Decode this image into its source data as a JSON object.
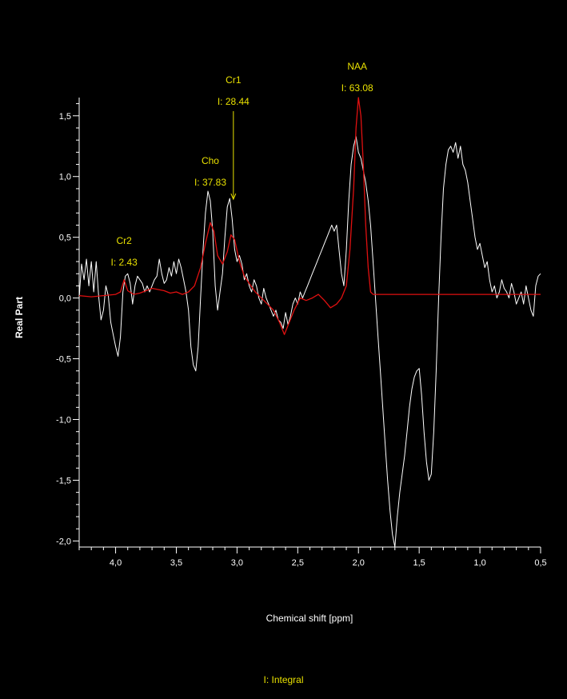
{
  "chart_data": {
    "type": "line",
    "xlabel": "Chemical shift [ppm]",
    "ylabel": "Real Part",
    "xlim": [
      4.3,
      0.5
    ],
    "ylim": [
      -2.05,
      1.65
    ],
    "x_reversed": true,
    "x_ticks": [
      {
        "value": 4.0,
        "label": "4,0"
      },
      {
        "value": 3.5,
        "label": "3,5"
      },
      {
        "value": 3.0,
        "label": "3,0"
      },
      {
        "value": 2.5,
        "label": "2,5"
      },
      {
        "value": 2.0,
        "label": "2,0"
      },
      {
        "value": 1.5,
        "label": "1,5"
      },
      {
        "value": 1.0,
        "label": "1,0"
      },
      {
        "value": 0.5,
        "label": "0,5"
      }
    ],
    "y_ticks": [
      {
        "value": 1.5,
        "label": "1,5"
      },
      {
        "value": 1.0,
        "label": "1,0"
      },
      {
        "value": 0.5,
        "label": "0,5"
      },
      {
        "value": 0.0,
        "label": "0,0"
      },
      {
        "value": -0.5,
        "label": "-0,5"
      },
      {
        "value": -1.0,
        "label": "-1,0"
      },
      {
        "value": -1.5,
        "label": "-1,5"
      },
      {
        "value": -2.0,
        "label": "-2,0"
      }
    ],
    "grid": false,
    "series": [
      {
        "color": "#ffffff",
        "points": [
          [
            4.3,
            0.0
          ],
          [
            4.28,
            0.28
          ],
          [
            4.26,
            0.15
          ],
          [
            4.24,
            0.32
          ],
          [
            4.22,
            0.1
          ],
          [
            4.2,
            0.3
          ],
          [
            4.18,
            0.05
          ],
          [
            4.16,
            0.3
          ],
          [
            4.14,
            0.02
          ],
          [
            4.12,
            -0.18
          ],
          [
            4.1,
            -0.1
          ],
          [
            4.08,
            0.1
          ],
          [
            4.06,
            0.02
          ],
          [
            4.04,
            -0.2
          ],
          [
            4.02,
            -0.3
          ],
          [
            4.0,
            -0.4
          ],
          [
            3.98,
            -0.48
          ],
          [
            3.96,
            -0.32
          ],
          [
            3.94,
            0.05
          ],
          [
            3.92,
            0.18
          ],
          [
            3.9,
            0.2
          ],
          [
            3.88,
            0.12
          ],
          [
            3.86,
            -0.05
          ],
          [
            3.84,
            0.1
          ],
          [
            3.82,
            0.18
          ],
          [
            3.8,
            0.15
          ],
          [
            3.78,
            0.12
          ],
          [
            3.76,
            0.05
          ],
          [
            3.74,
            0.1
          ],
          [
            3.72,
            0.05
          ],
          [
            3.7,
            0.1
          ],
          [
            3.68,
            0.15
          ],
          [
            3.66,
            0.18
          ],
          [
            3.64,
            0.32
          ],
          [
            3.62,
            0.2
          ],
          [
            3.6,
            0.12
          ],
          [
            3.58,
            0.15
          ],
          [
            3.56,
            0.25
          ],
          [
            3.54,
            0.18
          ],
          [
            3.52,
            0.3
          ],
          [
            3.5,
            0.2
          ],
          [
            3.48,
            0.32
          ],
          [
            3.46,
            0.25
          ],
          [
            3.44,
            0.15
          ],
          [
            3.42,
            0.05
          ],
          [
            3.4,
            -0.1
          ],
          [
            3.38,
            -0.4
          ],
          [
            3.36,
            -0.55
          ],
          [
            3.34,
            -0.6
          ],
          [
            3.32,
            -0.4
          ],
          [
            3.3,
            0.0
          ],
          [
            3.28,
            0.4
          ],
          [
            3.26,
            0.7
          ],
          [
            3.24,
            0.88
          ],
          [
            3.22,
            0.8
          ],
          [
            3.2,
            0.55
          ],
          [
            3.18,
            0.1
          ],
          [
            3.16,
            -0.1
          ],
          [
            3.14,
            0.05
          ],
          [
            3.12,
            0.2
          ],
          [
            3.1,
            0.5
          ],
          [
            3.08,
            0.75
          ],
          [
            3.06,
            0.82
          ],
          [
            3.04,
            0.65
          ],
          [
            3.02,
            0.4
          ],
          [
            3.0,
            0.3
          ],
          [
            2.98,
            0.35
          ],
          [
            2.96,
            0.28
          ],
          [
            2.94,
            0.15
          ],
          [
            2.92,
            0.2
          ],
          [
            2.9,
            0.1
          ],
          [
            2.88,
            0.05
          ],
          [
            2.86,
            0.15
          ],
          [
            2.84,
            0.1
          ],
          [
            2.82,
            0.0
          ],
          [
            2.8,
            -0.05
          ],
          [
            2.78,
            0.08
          ],
          [
            2.76,
            0.0
          ],
          [
            2.74,
            -0.05
          ],
          [
            2.72,
            -0.1
          ],
          [
            2.7,
            -0.15
          ],
          [
            2.68,
            -0.1
          ],
          [
            2.66,
            -0.18
          ],
          [
            2.64,
            -0.2
          ],
          [
            2.62,
            -0.25
          ],
          [
            2.6,
            -0.12
          ],
          [
            2.58,
            -0.22
          ],
          [
            2.56,
            -0.15
          ],
          [
            2.54,
            -0.05
          ],
          [
            2.52,
            0.0
          ],
          [
            2.5,
            -0.05
          ],
          [
            2.48,
            0.05
          ],
          [
            2.46,
            0.0
          ],
          [
            2.44,
            0.05
          ],
          [
            2.42,
            0.1
          ],
          [
            2.4,
            0.15
          ],
          [
            2.38,
            0.2
          ],
          [
            2.36,
            0.25
          ],
          [
            2.34,
            0.3
          ],
          [
            2.32,
            0.35
          ],
          [
            2.3,
            0.4
          ],
          [
            2.28,
            0.45
          ],
          [
            2.26,
            0.5
          ],
          [
            2.24,
            0.55
          ],
          [
            2.22,
            0.6
          ],
          [
            2.2,
            0.55
          ],
          [
            2.18,
            0.6
          ],
          [
            2.16,
            0.4
          ],
          [
            2.14,
            0.2
          ],
          [
            2.12,
            0.1
          ],
          [
            2.1,
            0.4
          ],
          [
            2.08,
            0.8
          ],
          [
            2.06,
            1.1
          ],
          [
            2.04,
            1.25
          ],
          [
            2.02,
            1.33
          ],
          [
            2.0,
            1.2
          ],
          [
            1.98,
            1.15
          ],
          [
            1.96,
            1.05
          ],
          [
            1.94,
            0.95
          ],
          [
            1.92,
            0.8
          ],
          [
            1.9,
            0.6
          ],
          [
            1.88,
            0.3
          ],
          [
            1.86,
            0.0
          ],
          [
            1.84,
            -0.3
          ],
          [
            1.82,
            -0.6
          ],
          [
            1.8,
            -0.9
          ],
          [
            1.78,
            -1.2
          ],
          [
            1.76,
            -1.5
          ],
          [
            1.74,
            -1.75
          ],
          [
            1.72,
            -1.95
          ],
          [
            1.7,
            -2.05
          ],
          [
            1.68,
            -1.8
          ],
          [
            1.66,
            -1.6
          ],
          [
            1.64,
            -1.45
          ],
          [
            1.62,
            -1.3
          ],
          [
            1.6,
            -1.1
          ],
          [
            1.58,
            -0.9
          ],
          [
            1.56,
            -0.75
          ],
          [
            1.54,
            -0.65
          ],
          [
            1.52,
            -0.6
          ],
          [
            1.5,
            -0.58
          ],
          [
            1.48,
            -0.8
          ],
          [
            1.46,
            -1.1
          ],
          [
            1.44,
            -1.35
          ],
          [
            1.42,
            -1.5
          ],
          [
            1.4,
            -1.45
          ],
          [
            1.38,
            -1.1
          ],
          [
            1.36,
            -0.6
          ],
          [
            1.34,
            0.0
          ],
          [
            1.32,
            0.5
          ],
          [
            1.3,
            0.9
          ],
          [
            1.28,
            1.1
          ],
          [
            1.26,
            1.22
          ],
          [
            1.24,
            1.25
          ],
          [
            1.22,
            1.2
          ],
          [
            1.2,
            1.28
          ],
          [
            1.18,
            1.15
          ],
          [
            1.16,
            1.25
          ],
          [
            1.14,
            1.1
          ],
          [
            1.12,
            1.05
          ],
          [
            1.1,
            0.95
          ],
          [
            1.08,
            0.8
          ],
          [
            1.06,
            0.65
          ],
          [
            1.04,
            0.5
          ],
          [
            1.02,
            0.4
          ],
          [
            1.0,
            0.45
          ],
          [
            0.98,
            0.35
          ],
          [
            0.96,
            0.25
          ],
          [
            0.94,
            0.3
          ],
          [
            0.92,
            0.15
          ],
          [
            0.9,
            0.05
          ],
          [
            0.88,
            0.1
          ],
          [
            0.86,
            0.0
          ],
          [
            0.84,
            0.05
          ],
          [
            0.82,
            0.15
          ],
          [
            0.8,
            0.08
          ],
          [
            0.78,
            0.05
          ],
          [
            0.76,
            0.0
          ],
          [
            0.74,
            0.12
          ],
          [
            0.72,
            0.05
          ],
          [
            0.7,
            -0.05
          ],
          [
            0.68,
            0.0
          ],
          [
            0.66,
            0.05
          ],
          [
            0.64,
            -0.05
          ],
          [
            0.62,
            0.1
          ],
          [
            0.6,
            0.0
          ],
          [
            0.58,
            -0.1
          ],
          [
            0.56,
            -0.15
          ],
          [
            0.54,
            0.1
          ],
          [
            0.52,
            0.18
          ],
          [
            0.5,
            0.2
          ]
        ]
      },
      {
        "color": "#e01010",
        "points": [
          [
            4.3,
            0.02
          ],
          [
            4.2,
            0.01
          ],
          [
            4.1,
            0.02
          ],
          [
            4.0,
            0.03
          ],
          [
            3.96,
            0.05
          ],
          [
            3.93,
            0.15
          ],
          [
            3.9,
            0.06
          ],
          [
            3.85,
            0.03
          ],
          [
            3.8,
            0.04
          ],
          [
            3.7,
            0.08
          ],
          [
            3.6,
            0.06
          ],
          [
            3.55,
            0.04
          ],
          [
            3.5,
            0.05
          ],
          [
            3.45,
            0.03
          ],
          [
            3.4,
            0.05
          ],
          [
            3.35,
            0.1
          ],
          [
            3.3,
            0.25
          ],
          [
            3.26,
            0.45
          ],
          [
            3.22,
            0.62
          ],
          [
            3.19,
            0.55
          ],
          [
            3.16,
            0.35
          ],
          [
            3.12,
            0.28
          ],
          [
            3.08,
            0.38
          ],
          [
            3.05,
            0.52
          ],
          [
            3.02,
            0.48
          ],
          [
            2.98,
            0.3
          ],
          [
            2.94,
            0.18
          ],
          [
            2.9,
            0.12
          ],
          [
            2.85,
            0.05
          ],
          [
            2.8,
            0.0
          ],
          [
            2.75,
            -0.05
          ],
          [
            2.7,
            -0.1
          ],
          [
            2.65,
            -0.2
          ],
          [
            2.61,
            -0.3
          ],
          [
            2.57,
            -0.2
          ],
          [
            2.53,
            -0.1
          ],
          [
            2.48,
            0.0
          ],
          [
            2.43,
            -0.02
          ],
          [
            2.38,
            0.0
          ],
          [
            2.33,
            0.03
          ],
          [
            2.28,
            -0.02
          ],
          [
            2.23,
            -0.08
          ],
          [
            2.18,
            -0.05
          ],
          [
            2.14,
            0.0
          ],
          [
            2.1,
            0.1
          ],
          [
            2.07,
            0.4
          ],
          [
            2.04,
            0.9
          ],
          [
            2.02,
            1.4
          ],
          [
            2.0,
            1.65
          ],
          [
            1.98,
            1.5
          ],
          [
            1.96,
            1.1
          ],
          [
            1.94,
            0.6
          ],
          [
            1.92,
            0.25
          ],
          [
            1.9,
            0.05
          ],
          [
            1.88,
            0.03
          ],
          [
            1.7,
            0.03
          ],
          [
            1.5,
            0.03
          ],
          [
            1.3,
            0.03
          ],
          [
            1.1,
            0.03
          ],
          [
            0.9,
            0.03
          ],
          [
            0.7,
            0.03
          ],
          [
            0.5,
            0.03
          ]
        ]
      }
    ],
    "annotations": [
      {
        "name": "Cr2",
        "integral_label": "I: 2.43",
        "ppm": 3.93,
        "color": "#e8e000"
      },
      {
        "name": "Cho",
        "integral_label": "I: 37.83",
        "ppm": 3.22,
        "color": "#e8e000"
      },
      {
        "name": "Cr1",
        "integral_label": "I: 28.44",
        "ppm": 3.03,
        "color": "#e8e000",
        "arrow_to_value": 0.8
      },
      {
        "name": "NAA",
        "integral_label": "I: 63.08",
        "ppm": 2.01,
        "color": "#e8e000"
      }
    ]
  },
  "footer": {
    "integral_legend": "I: Integral"
  },
  "colors": {
    "background": "#000000",
    "axis": "#ffffff",
    "annotation": "#e8e000"
  }
}
